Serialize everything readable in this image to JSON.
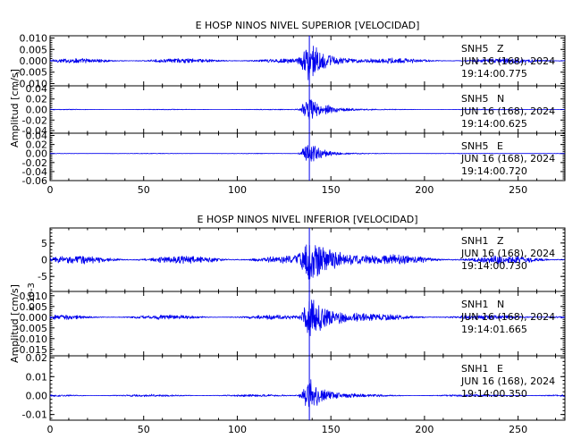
{
  "colors": {
    "trace": "#0000ee",
    "axes": "#000000",
    "background": "#ffffff"
  },
  "chart_data": [
    {
      "type": "line",
      "title": "E HOSP NINOS NIVEL SUPERIOR [VELOCIDAD]",
      "ylabel": "Amplitud [cm/s]",
      "xlim": [
        0,
        275
      ],
      "xticks": [
        0,
        50,
        100,
        150,
        200,
        250
      ],
      "xtick_labels": [
        "0",
        "50",
        "100",
        "150",
        "200",
        "250"
      ],
      "grid": false,
      "panels": [
        {
          "station": "SNH5",
          "component": "Z",
          "date": "JUN 16 (168), 2024",
          "time": "19:14:00.775",
          "ylim": [
            -0.011,
            0.011
          ],
          "yticks": [
            -0.01,
            -0.005,
            0.0,
            0.005,
            0.01
          ],
          "ytick_labels": [
            "-0.010",
            "-0.005",
            "0.000",
            "0.005",
            "0.010"
          ],
          "onset": 138.5,
          "envelope": {
            "noise": 0.0012,
            "peak": 0.0085,
            "peak_time": 138.5,
            "decay": 10,
            "start": 128
          }
        },
        {
          "station": "SNH5",
          "component": "N",
          "date": "JUN 16 (168), 2024",
          "time": "19:14:00.625",
          "ylim": [
            -0.045,
            0.045
          ],
          "yticks": [
            -0.04,
            -0.02,
            0.0,
            0.02,
            0.04
          ],
          "ytick_labels": [
            "-0.04",
            "-0.02",
            "0.00",
            "0.02",
            "0.04"
          ],
          "onset": 138.5,
          "envelope": {
            "noise": 0.0008,
            "peak": 0.028,
            "peak_time": 138.5,
            "decay": 9,
            "start": 130
          }
        },
        {
          "station": "SNH5",
          "component": "E",
          "date": "JUN 16 (168), 2024",
          "time": "19:14:00.720",
          "ylim": [
            -0.06,
            0.045
          ],
          "yticks": [
            -0.06,
            -0.04,
            -0.02,
            0.0,
            0.02,
            0.04
          ],
          "ytick_labels": [
            "-0.06",
            "-0.04",
            "-0.02",
            "0.00",
            "0.02",
            "0.04"
          ],
          "onset": 138.5,
          "envelope": {
            "noise": 0.0008,
            "peak": 0.03,
            "peak_time": 138.5,
            "decay": 7,
            "start": 131
          }
        }
      ]
    },
    {
      "type": "line",
      "title": "E HOSP NINOS NIVEL INFERIOR [VELOCIDAD]",
      "ylabel": "Amplitud [cm/s]",
      "xlim": [
        0,
        275
      ],
      "xticks": [
        0,
        50,
        100,
        150,
        200,
        250
      ],
      "xtick_labels": [
        "0",
        "50",
        "100",
        "150",
        "200",
        "250"
      ],
      "grid": false,
      "panels": [
        {
          "station": "SNH1",
          "component": "Z",
          "date": "JUN 16 (168), 2024",
          "time": "19:14:00.730",
          "ylim": [
            -9.5,
            9.5
          ],
          "yticks": [
            -5,
            0,
            5
          ],
          "ytick_labels": [
            "-5",
            "0",
            "5"
          ],
          "multiplier": "x 10-3",
          "onset": 138.5,
          "envelope": {
            "noise": 1.4,
            "peak": 7.5,
            "peak_time": 138.5,
            "decay": 14,
            "start": 126
          }
        },
        {
          "station": "SNH1",
          "component": "N",
          "date": "JUN 16 (168), 2024",
          "time": "19:14:01.665",
          "ylim": [
            -0.018,
            0.012
          ],
          "yticks": [
            -0.015,
            -0.01,
            -0.005,
            0.0,
            0.005,
            0.01
          ],
          "ytick_labels": [
            "-0.015",
            "-0.010",
            "-0.005",
            "0.000",
            "0.005",
            "0.010"
          ],
          "onset": 138.5,
          "envelope": {
            "noise": 0.0012,
            "peak": 0.0095,
            "peak_time": 139,
            "decay": 13,
            "start": 128
          }
        },
        {
          "station": "SNH1",
          "component": "E",
          "date": "JUN 16 (168), 2024",
          "time": "19:14:00.350",
          "ylim": [
            -0.013,
            0.021
          ],
          "yticks": [
            -0.01,
            0.0,
            0.01,
            0.02
          ],
          "ytick_labels": [
            "-0.01",
            "0.00",
            "0.01",
            "0.02"
          ],
          "onset": 138.5,
          "envelope": {
            "noise": 0.0007,
            "peak": 0.01,
            "peak_time": 138.5,
            "decay": 8,
            "start": 131
          }
        }
      ]
    }
  ]
}
